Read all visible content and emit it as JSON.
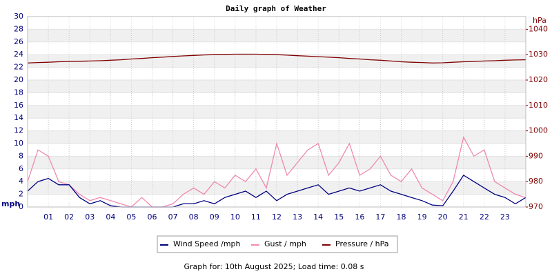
{
  "chart_data": {
    "type": "line",
    "title": "Daily graph of Weather",
    "y_label": "mph",
    "y2_label": "hPa",
    "footer": "Graph for: 10th August 2025; Load time: 0.08 s",
    "x": [
      0,
      0.5,
      1,
      1.5,
      2,
      2.5,
      3,
      3.5,
      4,
      4.5,
      5,
      5.5,
      6,
      6.5,
      7,
      7.5,
      8,
      8.5,
      9,
      9.5,
      10,
      10.5,
      11,
      11.5,
      12,
      12.5,
      13,
      13.5,
      14,
      14.5,
      15,
      15.5,
      16,
      16.5,
      17,
      17.5,
      18,
      18.5,
      19,
      19.5,
      20,
      20.5,
      21,
      21.5,
      22,
      22.5,
      23,
      23.5,
      24
    ],
    "series": [
      {
        "name": "Gust / mph",
        "color": "#f088b0",
        "axis": "y",
        "values": [
          4,
          9,
          8,
          4,
          3.5,
          2,
          1,
          1.5,
          1,
          0.5,
          0,
          1.5,
          0,
          0,
          0.5,
          2,
          3,
          2,
          4,
          3,
          5,
          4,
          6,
          3,
          10,
          5,
          7,
          9,
          10,
          5,
          7,
          10,
          5,
          6,
          8,
          5,
          4,
          6,
          3,
          2,
          1,
          4,
          11,
          8,
          9,
          4,
          3,
          2,
          1.5
        ]
      },
      {
        "name": "Wind Speed /mph",
        "color": "#000080",
        "axis": "y",
        "values": [
          2.5,
          4,
          4.5,
          3.5,
          3.5,
          1.5,
          0.5,
          1,
          0.2,
          0,
          0,
          0,
          0,
          0,
          0,
          0.5,
          0.5,
          1,
          0.5,
          1.5,
          2,
          2.5,
          1.5,
          2.5,
          1,
          2,
          2.5,
          3,
          3.5,
          2,
          2.5,
          3,
          2.5,
          3,
          3.5,
          2.5,
          2,
          1.5,
          1,
          0.3,
          0.2,
          2.5,
          5,
          4,
          3,
          2,
          1.5,
          0.5,
          1.5
        ]
      },
      {
        "name": "Pressure / hPa",
        "color": "#800000",
        "axis": "y2",
        "values": [
          1026.7,
          1026.9,
          1027,
          1027.2,
          1027.3,
          1027.4,
          1027.5,
          1027.6,
          1027.8,
          1028,
          1028.3,
          1028.5,
          1028.8,
          1029,
          1029.3,
          1029.5,
          1029.7,
          1029.9,
          1030,
          1030.1,
          1030.2,
          1030.2,
          1030.2,
          1030.1,
          1030,
          1029.8,
          1029.6,
          1029.4,
          1029.2,
          1029,
          1028.8,
          1028.5,
          1028.3,
          1028,
          1027.8,
          1027.5,
          1027.2,
          1027,
          1026.9,
          1026.7,
          1026.8,
          1027,
          1027.2,
          1027.3,
          1027.5,
          1027.6,
          1027.8,
          1027.9,
          1028
        ]
      }
    ],
    "xlim": [
      0,
      24
    ],
    "xticks": [
      {
        "value": 1,
        "label": "01"
      },
      {
        "value": 2,
        "label": "02"
      },
      {
        "value": 3,
        "label": "03"
      },
      {
        "value": 4,
        "label": "04"
      },
      {
        "value": 5,
        "label": "05"
      },
      {
        "value": 6,
        "label": "06"
      },
      {
        "value": 7,
        "label": "07"
      },
      {
        "value": 8,
        "label": "08"
      },
      {
        "value": 9,
        "label": "09"
      },
      {
        "value": 10,
        "label": "10"
      },
      {
        "value": 11,
        "label": "11"
      },
      {
        "value": 12,
        "label": "12"
      },
      {
        "value": 13,
        "label": "13"
      },
      {
        "value": 14,
        "label": "14"
      },
      {
        "value": 15,
        "label": "15"
      },
      {
        "value": 16,
        "label": "16"
      },
      {
        "value": 17,
        "label": "17"
      },
      {
        "value": 18,
        "label": "18"
      },
      {
        "value": 19,
        "label": "19"
      },
      {
        "value": 20,
        "label": "20"
      },
      {
        "value": 21,
        "label": "21"
      },
      {
        "value": 22,
        "label": "22"
      },
      {
        "value": 23,
        "label": "23"
      }
    ],
    "ylim": [
      0,
      30
    ],
    "yticks": [
      0,
      2,
      4,
      6,
      8,
      10,
      12,
      14,
      16,
      18,
      20,
      22,
      24,
      26,
      28,
      30
    ],
    "y2lim": [
      970,
      1045
    ],
    "y2ticks": [
      970,
      980,
      990,
      1000,
      1010,
      1020,
      1030,
      1040
    ],
    "grid": true
  }
}
